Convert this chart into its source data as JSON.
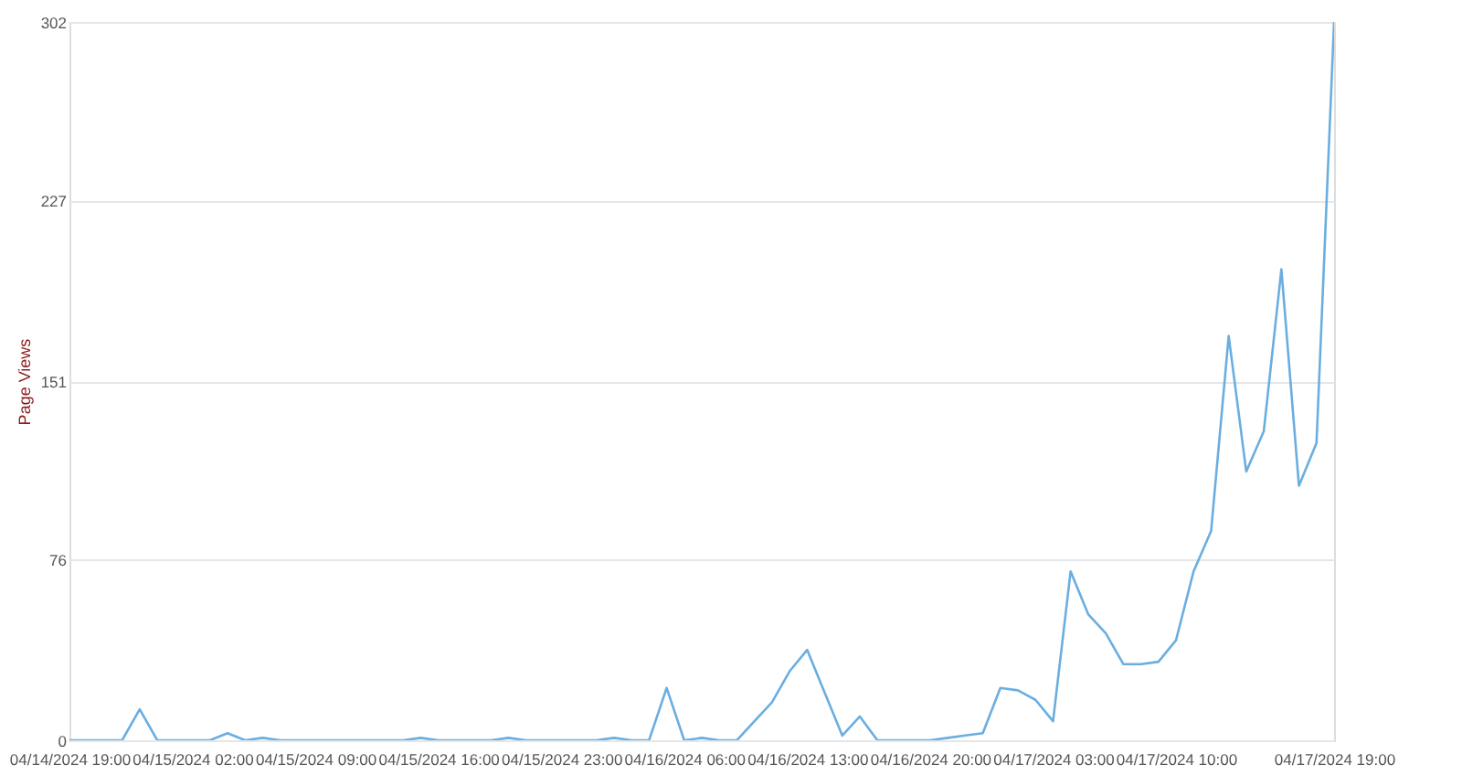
{
  "chart_data": {
    "type": "line",
    "ylabel": "Page Views",
    "x": [
      "2024-04-14T19:00",
      "2024-04-14T20:00",
      "2024-04-14T21:00",
      "2024-04-14T22:00",
      "2024-04-14T23:00",
      "2024-04-15T00:00",
      "2024-04-15T01:00",
      "2024-04-15T02:00",
      "2024-04-15T03:00",
      "2024-04-15T04:00",
      "2024-04-15T05:00",
      "2024-04-15T06:00",
      "2024-04-15T07:00",
      "2024-04-15T08:00",
      "2024-04-15T09:00",
      "2024-04-15T10:00",
      "2024-04-15T11:00",
      "2024-04-15T12:00",
      "2024-04-15T13:00",
      "2024-04-15T14:00",
      "2024-04-15T15:00",
      "2024-04-15T16:00",
      "2024-04-15T17:00",
      "2024-04-15T18:00",
      "2024-04-15T19:00",
      "2024-04-15T20:00",
      "2024-04-15T21:00",
      "2024-04-15T22:00",
      "2024-04-15T23:00",
      "2024-04-16T00:00",
      "2024-04-16T01:00",
      "2024-04-16T02:00",
      "2024-04-16T03:00",
      "2024-04-16T04:00",
      "2024-04-16T05:00",
      "2024-04-16T06:00",
      "2024-04-16T07:00",
      "2024-04-16T08:00",
      "2024-04-16T09:00",
      "2024-04-16T10:00",
      "2024-04-16T11:00",
      "2024-04-16T12:00",
      "2024-04-16T13:00",
      "2024-04-16T14:00",
      "2024-04-16T15:00",
      "2024-04-16T16:00",
      "2024-04-16T17:00",
      "2024-04-16T18:00",
      "2024-04-16T19:00",
      "2024-04-16T20:00",
      "2024-04-16T21:00",
      "2024-04-16T22:00",
      "2024-04-16T23:00",
      "2024-04-17T00:00",
      "2024-04-17T01:00",
      "2024-04-17T02:00",
      "2024-04-17T03:00",
      "2024-04-17T04:00",
      "2024-04-17T05:00",
      "2024-04-17T06:00",
      "2024-04-17T07:00",
      "2024-04-17T08:00",
      "2024-04-17T09:00",
      "2024-04-17T10:00",
      "2024-04-17T11:00",
      "2024-04-17T12:00",
      "2024-04-17T13:00",
      "2024-04-17T14:00",
      "2024-04-17T15:00",
      "2024-04-17T16:00",
      "2024-04-17T17:00",
      "2024-04-17T18:00",
      "2024-04-17T19:00"
    ],
    "series": [
      {
        "color": "#6aaee0",
        "values": [
          0,
          0,
          0,
          0,
          13,
          0,
          0,
          0,
          0,
          3,
          0,
          1,
          0,
          0,
          0,
          0,
          0,
          0,
          0,
          0,
          1,
          0,
          0,
          0,
          0,
          1,
          0,
          0,
          0,
          0,
          0,
          1,
          0,
          0,
          22,
          0,
          1,
          0,
          0,
          8,
          16,
          29,
          38,
          20,
          2,
          10,
          0,
          0,
          0,
          0,
          1,
          2,
          3,
          22,
          21,
          17,
          8,
          71,
          53,
          45,
          32,
          32,
          33,
          42,
          71,
          88,
          170,
          113,
          130,
          198,
          107,
          125,
          302
        ]
      }
    ],
    "xlim": [
      "2024-04-14T19:00",
      "2024-04-17T19:00"
    ],
    "xticks": [
      {
        "value": "2024-04-14T19:00",
        "label": "04/14/2024 19:00"
      },
      {
        "value": "2024-04-15T02:00",
        "label": "04/15/2024 02:00"
      },
      {
        "value": "2024-04-15T09:00",
        "label": "04/15/2024 09:00"
      },
      {
        "value": "2024-04-15T16:00",
        "label": "04/15/2024 16:00"
      },
      {
        "value": "2024-04-15T23:00",
        "label": "04/15/2024 23:00"
      },
      {
        "value": "2024-04-16T06:00",
        "label": "04/16/2024 06:00"
      },
      {
        "value": "2024-04-16T13:00",
        "label": "04/16/2024 13:00"
      },
      {
        "value": "2024-04-16T20:00",
        "label": "04/16/2024 20:00"
      },
      {
        "value": "2024-04-17T03:00",
        "label": "04/17/2024 03:00"
      },
      {
        "value": "2024-04-17T10:00",
        "label": "04/17/2024 10:00"
      },
      {
        "value": "2024-04-17T19:00",
        "label": "04/17/2024 19:00"
      }
    ],
    "ylim": [
      0,
      302
    ],
    "yticks": [
      0,
      76,
      151,
      227,
      302
    ],
    "grid": "y",
    "marker": "none",
    "line_style": "solid"
  }
}
